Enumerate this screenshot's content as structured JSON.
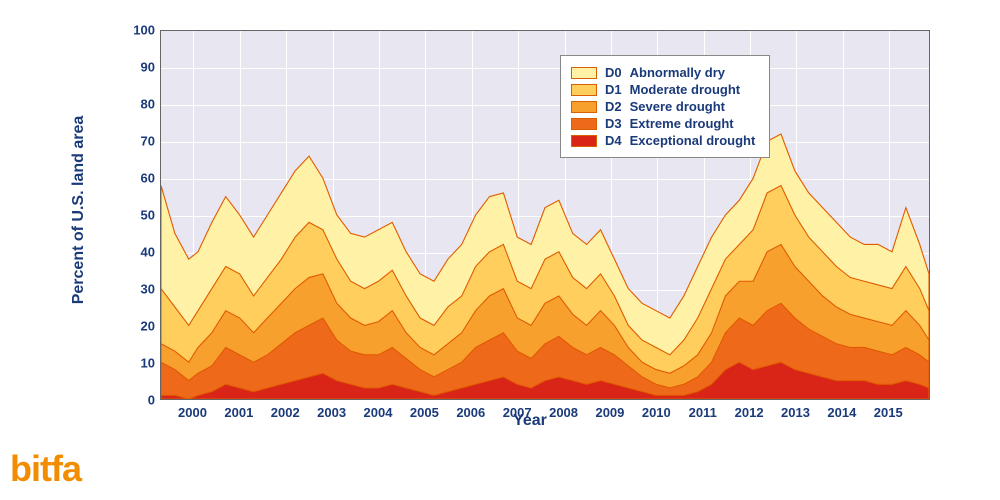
{
  "logo_text": "bitfa",
  "chart": {
    "type": "stacked-area",
    "y_label": "Percent of U.S. land area",
    "x_label": "Year",
    "ylim": [
      0,
      100
    ],
    "y_ticks": [
      0,
      10,
      20,
      30,
      40,
      50,
      60,
      70,
      80,
      90,
      100
    ],
    "x_ticks": [
      "2000",
      "2001",
      "2002",
      "2003",
      "2004",
      "2005",
      "2006",
      "2007",
      "2008",
      "2009",
      "2010",
      "2011",
      "2012",
      "2013",
      "2014",
      "2015"
    ],
    "x_range": [
      1999.3,
      2015.9
    ],
    "background_color": "#e8e6f0",
    "grid_color": "#ffffff",
    "axis_text_color": "#1a3a7a",
    "stroke_color": "#e05a00",
    "stroke_width": 1.1,
    "label_fontsize": 16,
    "tick_fontsize": 13,
    "legend": {
      "items": [
        {
          "code": "D0",
          "label": "Abnormally dry",
          "color": "#fff2a6"
        },
        {
          "code": "D1",
          "label": "Moderate drought",
          "color": "#ffce5c"
        },
        {
          "code": "D2",
          "label": "Severe drought",
          "color": "#f8a02e"
        },
        {
          "code": "D3",
          "label": "Extreme drought",
          "color": "#ee6a1a"
        },
        {
          "code": "D4",
          "label": "Exceptional drought",
          "color": "#d92418"
        }
      ]
    },
    "series_order_bottom_to_top": [
      "D4",
      "D3",
      "D2",
      "D1",
      "D0"
    ],
    "series_colors": {
      "D0": "#fff2a6",
      "D1": "#ffce5c",
      "D2": "#f8a02e",
      "D3": "#ee6a1a",
      "D4": "#d92418"
    },
    "data": [
      {
        "x": 1999.3,
        "D4": 1,
        "D3": 10,
        "D2": 15,
        "D1": 30,
        "D0": 58
      },
      {
        "x": 1999.6,
        "D4": 1,
        "D3": 8,
        "D2": 13,
        "D1": 25,
        "D0": 45
      },
      {
        "x": 1999.9,
        "D4": 0,
        "D3": 5,
        "D2": 10,
        "D1": 20,
        "D0": 38
      },
      {
        "x": 2000.1,
        "D4": 1,
        "D3": 7,
        "D2": 14,
        "D1": 24,
        "D0": 40
      },
      {
        "x": 2000.4,
        "D4": 2,
        "D3": 9,
        "D2": 18,
        "D1": 30,
        "D0": 48
      },
      {
        "x": 2000.7,
        "D4": 4,
        "D3": 14,
        "D2": 24,
        "D1": 36,
        "D0": 55
      },
      {
        "x": 2001.0,
        "D4": 3,
        "D3": 12,
        "D2": 22,
        "D1": 34,
        "D0": 50
      },
      {
        "x": 2001.3,
        "D4": 2,
        "D3": 10,
        "D2": 18,
        "D1": 28,
        "D0": 44
      },
      {
        "x": 2001.6,
        "D4": 3,
        "D3": 12,
        "D2": 22,
        "D1": 33,
        "D0": 50
      },
      {
        "x": 2001.9,
        "D4": 4,
        "D3": 15,
        "D2": 26,
        "D1": 38,
        "D0": 56
      },
      {
        "x": 2002.2,
        "D4": 5,
        "D3": 18,
        "D2": 30,
        "D1": 44,
        "D0": 62
      },
      {
        "x": 2002.5,
        "D4": 6,
        "D3": 20,
        "D2": 33,
        "D1": 48,
        "D0": 66
      },
      {
        "x": 2002.8,
        "D4": 7,
        "D3": 22,
        "D2": 34,
        "D1": 46,
        "D0": 60
      },
      {
        "x": 2003.1,
        "D4": 5,
        "D3": 16,
        "D2": 26,
        "D1": 38,
        "D0": 50
      },
      {
        "x": 2003.4,
        "D4": 4,
        "D3": 13,
        "D2": 22,
        "D1": 32,
        "D0": 45
      },
      {
        "x": 2003.7,
        "D4": 3,
        "D3": 12,
        "D2": 20,
        "D1": 30,
        "D0": 44
      },
      {
        "x": 2004.0,
        "D4": 3,
        "D3": 12,
        "D2": 21,
        "D1": 32,
        "D0": 46
      },
      {
        "x": 2004.3,
        "D4": 4,
        "D3": 14,
        "D2": 24,
        "D1": 35,
        "D0": 48
      },
      {
        "x": 2004.6,
        "D4": 3,
        "D3": 11,
        "D2": 18,
        "D1": 28,
        "D0": 40
      },
      {
        "x": 2004.9,
        "D4": 2,
        "D3": 8,
        "D2": 14,
        "D1": 22,
        "D0": 34
      },
      {
        "x": 2005.2,
        "D4": 1,
        "D3": 6,
        "D2": 12,
        "D1": 20,
        "D0": 32
      },
      {
        "x": 2005.5,
        "D4": 2,
        "D3": 8,
        "D2": 15,
        "D1": 25,
        "D0": 38
      },
      {
        "x": 2005.8,
        "D4": 3,
        "D3": 10,
        "D2": 18,
        "D1": 28,
        "D0": 42
      },
      {
        "x": 2006.1,
        "D4": 4,
        "D3": 14,
        "D2": 24,
        "D1": 36,
        "D0": 50
      },
      {
        "x": 2006.4,
        "D4": 5,
        "D3": 16,
        "D2": 28,
        "D1": 40,
        "D0": 55
      },
      {
        "x": 2006.7,
        "D4": 6,
        "D3": 18,
        "D2": 30,
        "D1": 42,
        "D0": 56
      },
      {
        "x": 2007.0,
        "D4": 4,
        "D3": 13,
        "D2": 22,
        "D1": 32,
        "D0": 44
      },
      {
        "x": 2007.3,
        "D4": 3,
        "D3": 11,
        "D2": 20,
        "D1": 30,
        "D0": 42
      },
      {
        "x": 2007.6,
        "D4": 5,
        "D3": 15,
        "D2": 26,
        "D1": 38,
        "D0": 52
      },
      {
        "x": 2007.9,
        "D4": 6,
        "D3": 17,
        "D2": 28,
        "D1": 40,
        "D0": 54
      },
      {
        "x": 2008.2,
        "D4": 5,
        "D3": 14,
        "D2": 23,
        "D1": 33,
        "D0": 45
      },
      {
        "x": 2008.5,
        "D4": 4,
        "D3": 12,
        "D2": 20,
        "D1": 30,
        "D0": 42
      },
      {
        "x": 2008.8,
        "D4": 5,
        "D3": 14,
        "D2": 24,
        "D1": 34,
        "D0": 46
      },
      {
        "x": 2009.1,
        "D4": 4,
        "D3": 12,
        "D2": 20,
        "D1": 28,
        "D0": 38
      },
      {
        "x": 2009.4,
        "D4": 3,
        "D3": 9,
        "D2": 14,
        "D1": 20,
        "D0": 30
      },
      {
        "x": 2009.7,
        "D4": 2,
        "D3": 6,
        "D2": 10,
        "D1": 16,
        "D0": 26
      },
      {
        "x": 2010.0,
        "D4": 1,
        "D3": 4,
        "D2": 8,
        "D1": 14,
        "D0": 24
      },
      {
        "x": 2010.3,
        "D4": 1,
        "D3": 3,
        "D2": 7,
        "D1": 12,
        "D0": 22
      },
      {
        "x": 2010.6,
        "D4": 1,
        "D3": 4,
        "D2": 9,
        "D1": 16,
        "D0": 28
      },
      {
        "x": 2010.9,
        "D4": 2,
        "D3": 6,
        "D2": 12,
        "D1": 22,
        "D0": 36
      },
      {
        "x": 2011.2,
        "D4": 4,
        "D3": 10,
        "D2": 18,
        "D1": 30,
        "D0": 44
      },
      {
        "x": 2011.5,
        "D4": 8,
        "D3": 18,
        "D2": 28,
        "D1": 38,
        "D0": 50
      },
      {
        "x": 2011.8,
        "D4": 10,
        "D3": 22,
        "D2": 32,
        "D1": 42,
        "D0": 54
      },
      {
        "x": 2012.1,
        "D4": 8,
        "D3": 20,
        "D2": 32,
        "D1": 46,
        "D0": 60
      },
      {
        "x": 2012.4,
        "D4": 9,
        "D3": 24,
        "D2": 40,
        "D1": 56,
        "D0": 70
      },
      {
        "x": 2012.7,
        "D4": 10,
        "D3": 26,
        "D2": 42,
        "D1": 58,
        "D0": 72
      },
      {
        "x": 2013.0,
        "D4": 8,
        "D3": 22,
        "D2": 36,
        "D1": 50,
        "D0": 62
      },
      {
        "x": 2013.3,
        "D4": 7,
        "D3": 19,
        "D2": 32,
        "D1": 44,
        "D0": 56
      },
      {
        "x": 2013.6,
        "D4": 6,
        "D3": 17,
        "D2": 28,
        "D1": 40,
        "D0": 52
      },
      {
        "x": 2013.9,
        "D4": 5,
        "D3": 15,
        "D2": 25,
        "D1": 36,
        "D0": 48
      },
      {
        "x": 2014.2,
        "D4": 5,
        "D3": 14,
        "D2": 23,
        "D1": 33,
        "D0": 44
      },
      {
        "x": 2014.5,
        "D4": 5,
        "D3": 14,
        "D2": 22,
        "D1": 32,
        "D0": 42
      },
      {
        "x": 2014.8,
        "D4": 4,
        "D3": 13,
        "D2": 21,
        "D1": 31,
        "D0": 42
      },
      {
        "x": 2015.1,
        "D4": 4,
        "D3": 12,
        "D2": 20,
        "D1": 30,
        "D0": 40
      },
      {
        "x": 2015.4,
        "D4": 5,
        "D3": 14,
        "D2": 24,
        "D1": 36,
        "D0": 52
      },
      {
        "x": 2015.7,
        "D4": 4,
        "D3": 12,
        "D2": 20,
        "D1": 30,
        "D0": 42
      },
      {
        "x": 2015.9,
        "D4": 3,
        "D3": 10,
        "D2": 16,
        "D1": 24,
        "D0": 34
      }
    ]
  }
}
